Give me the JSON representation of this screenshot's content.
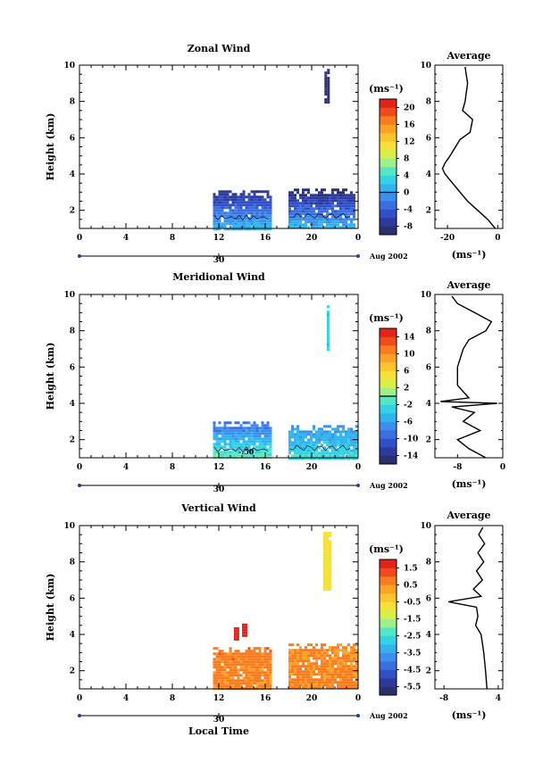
{
  "panels": [
    {
      "title": "Zonal Wind",
      "ylabel": "Height (km)",
      "unit_label": "(ms⁻¹)",
      "colorbar_ticks": [
        "20",
        "16",
        "12",
        "8",
        "4",
        "0",
        "-4",
        "-8"
      ],
      "average_title": "Average",
      "average_xticks": [
        "-20",
        "0"
      ],
      "average_unit": "(ms⁻¹)",
      "contour_label": ""
    },
    {
      "title": "Meridional Wind",
      "ylabel": "Height (km)",
      "unit_label": "(ms⁻¹)",
      "colorbar_ticks": [
        "14",
        "10",
        "6",
        "2",
        "-2",
        "-6",
        "-10",
        "-14"
      ],
      "average_title": "Average",
      "average_xticks": [
        "-8",
        "0"
      ],
      "average_unit": "(ms⁻¹)",
      "contour_label": "-.50"
    },
    {
      "title": "Vertical Wind",
      "ylabel": "Height (km)",
      "xlabel": "Local Time",
      "unit_label": "(ms⁻¹)",
      "colorbar_ticks": [
        "1.5",
        "0.5",
        "-0.5",
        "-1.5",
        "-2.5",
        "-3.5",
        "-4.5",
        "-5.5"
      ],
      "average_title": "Average",
      "average_xticks": [
        "-8",
        "4"
      ],
      "average_unit": "(ms⁻¹)",
      "contour_label": ""
    }
  ],
  "x_ticks": [
    "0",
    "4",
    "8",
    "12",
    "16",
    "20",
    "0"
  ],
  "y_ticks": [
    "2",
    "4",
    "6",
    "8",
    "10"
  ],
  "date_day": "30",
  "date_month": "Aug 2002",
  "chart_data": [
    {
      "type": "heatmap",
      "title": "Zonal Wind",
      "xlabel": "",
      "ylabel": "Height (km)",
      "xlim": [
        0,
        24
      ],
      "ylim": [
        1,
        10
      ],
      "x_tick_values": [
        0,
        4,
        8,
        12,
        16,
        20,
        24
      ],
      "y_tick_values": [
        2,
        4,
        6,
        8,
        10
      ],
      "colorbar_range": [
        -10,
        22
      ],
      "colorbar_ticks": [
        20,
        16,
        12,
        8,
        4,
        0,
        -4,
        -8
      ],
      "colorbar_marked_level": 0,
      "data_blocks": [
        {
          "t_start": 11.5,
          "t_end": 16.5,
          "h_low": 1.0,
          "h_high": 3.1,
          "value_low": 2,
          "value_high": -8
        },
        {
          "t_start": 18.0,
          "t_end": 23.7,
          "h_low": 1.0,
          "h_high": 3.2,
          "value_low": 2,
          "value_high": -9
        },
        {
          "t_start": 21.1,
          "t_end": 21.4,
          "h_low": 8.0,
          "h_high": 9.8,
          "value_low": -9,
          "value_high": -9
        }
      ],
      "average_profile": {
        "xlim": [
          -25,
          2
        ],
        "heights": [
          1.0,
          1.5,
          2.0,
          2.5,
          3.0,
          3.5,
          4.0,
          4.3,
          4.6,
          5.0,
          5.9,
          6.3,
          7.0,
          7.5,
          8.0,
          9.0,
          9.9
        ],
        "values": [
          -1,
          -4,
          -8,
          -12,
          -15,
          -18,
          -21,
          -22,
          -21,
          -19,
          -15,
          -11,
          -10,
          -14,
          -13,
          -12,
          -13
        ]
      }
    },
    {
      "type": "heatmap",
      "title": "Meridional Wind",
      "xlabel": "",
      "ylabel": "Height (km)",
      "xlim": [
        0,
        24
      ],
      "ylim": [
        1,
        10
      ],
      "x_tick_values": [
        0,
        4,
        8,
        12,
        16,
        20,
        24
      ],
      "y_tick_values": [
        2,
        4,
        6,
        8,
        10
      ],
      "colorbar_range": [
        -16,
        16
      ],
      "colorbar_ticks": [
        14,
        10,
        6,
        2,
        -2,
        -6,
        -10,
        -14
      ],
      "colorbar_marked_level": 0,
      "contour_level_label": "-.50",
      "data_blocks": [
        {
          "t_start": 11.5,
          "t_end": 16.5,
          "h_low": 1.0,
          "h_high": 3.0,
          "value_low": 0,
          "value_high": -9
        },
        {
          "t_start": 18.0,
          "t_end": 23.9,
          "h_low": 1.0,
          "h_high": 2.8,
          "value_low": -2,
          "value_high": -7
        },
        {
          "t_start": 21.3,
          "t_end": 21.5,
          "h_low": 7.0,
          "h_high": 9.4,
          "value_low": -3,
          "value_high": -3
        }
      ],
      "average_profile": {
        "xlim": [
          -12,
          0
        ],
        "heights": [
          1.0,
          1.5,
          2.0,
          2.5,
          3.0,
          3.5,
          3.8,
          4.0,
          4.1,
          4.3,
          5.0,
          6.0,
          7.0,
          7.5,
          8.0,
          8.5,
          9.0,
          9.5,
          9.9
        ],
        "values": [
          -3,
          -6,
          -8,
          -4,
          -7,
          -5,
          -9,
          -1,
          -11,
          -6,
          -8,
          -8,
          -7,
          -6,
          -3,
          -2,
          -5,
          -8,
          -9
        ]
      }
    },
    {
      "type": "heatmap",
      "title": "Vertical Wind",
      "xlabel": "Local Time",
      "ylabel": "Height (km)",
      "xlim": [
        0,
        24
      ],
      "ylim": [
        1,
        10
      ],
      "x_tick_values": [
        0,
        4,
        8,
        12,
        16,
        20,
        24
      ],
      "y_tick_values": [
        2,
        4,
        6,
        8,
        10
      ],
      "colorbar_range": [
        -6,
        2
      ],
      "colorbar_ticks": [
        1.5,
        0.5,
        -0.5,
        -1.5,
        -2.5,
        -3.5,
        -4.5,
        -5.5
      ],
      "colorbar_marked_level": null,
      "data_blocks": [
        {
          "t_start": 11.5,
          "t_end": 16.5,
          "h_low": 1.0,
          "h_high": 3.3,
          "value_low": 0.6,
          "value_high": 0.8
        },
        {
          "t_start": 18.0,
          "t_end": 23.8,
          "h_low": 1.0,
          "h_high": 3.5,
          "value_low": 0.7,
          "value_high": 0.5
        },
        {
          "t_start": 21.0,
          "t_end": 21.5,
          "h_low": 6.5,
          "h_high": 9.8,
          "value_low": -0.8,
          "value_high": -0.8
        },
        {
          "t_start": 13.3,
          "t_end": 13.6,
          "h_low": 3.8,
          "h_high": 4.4,
          "value_low": 2.0,
          "value_high": 2.0
        },
        {
          "t_start": 14.0,
          "t_end": 14.3,
          "h_low": 4.0,
          "h_high": 4.6,
          "value_low": 2.0,
          "value_high": 2.0
        }
      ],
      "average_profile": {
        "xlim": [
          -10,
          5
        ],
        "heights": [
          1.0,
          2.0,
          3.0,
          4.0,
          4.5,
          5.0,
          5.5,
          5.8,
          6.1,
          6.5,
          7.0,
          7.5,
          8.0,
          8.5,
          9.0,
          9.5,
          9.9
        ],
        "values": [
          1.5,
          1.2,
          0.8,
          0.2,
          -1,
          -0.5,
          -0.8,
          -7,
          0.2,
          -1.5,
          0.5,
          -0.8,
          0.8,
          -0.5,
          1.0,
          -0.3,
          0.6
        ]
      }
    }
  ]
}
